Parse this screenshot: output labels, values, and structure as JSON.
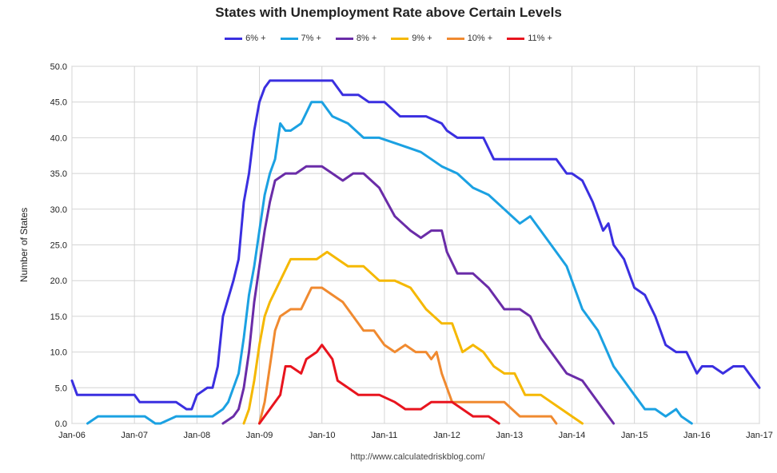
{
  "chart_data": {
    "type": "line",
    "title": "States with Unemployment Rate above Certain Levels",
    "ylabel": "Number of States",
    "xlabel": "",
    "source": "http://www.calculatedriskblog.com/",
    "ylim": [
      0,
      50
    ],
    "xlim": [
      "2006-01",
      "2017-01"
    ],
    "grid": true,
    "legend_position": "top",
    "y_ticks": [
      "0.0",
      "5.0",
      "10.0",
      "15.0",
      "20.0",
      "25.0",
      "30.0",
      "35.0",
      "40.0",
      "45.0",
      "50.0"
    ],
    "x_ticks": [
      "Jan-06",
      "Jan-07",
      "Jan-08",
      "Jan-09",
      "Jan-10",
      "Jan-11",
      "Jan-12",
      "Jan-13",
      "Jan-14",
      "Jan-15",
      "Jan-16",
      "Jan-17"
    ],
    "series": [
      {
        "name": "6% +",
        "color": "#3a2fe0",
        "x": [
          "2006-01",
          "2006-02",
          "2006-03",
          "2006-06",
          "2006-09",
          "2007-01",
          "2007-02",
          "2007-04",
          "2007-07",
          "2007-09",
          "2007-11",
          "2007-12",
          "2008-01",
          "2008-03",
          "2008-04",
          "2008-05",
          "2008-06",
          "2008-08",
          "2008-09",
          "2008-10",
          "2008-11",
          "2008-12",
          "2009-01",
          "2009-02",
          "2009-03",
          "2009-04",
          "2009-05",
          "2009-06",
          "2009-07",
          "2009-09",
          "2009-12",
          "2010-03",
          "2010-05",
          "2010-08",
          "2010-10",
          "2010-11",
          "2011-01",
          "2011-04",
          "2011-06",
          "2011-09",
          "2011-12",
          "2012-01",
          "2012-03",
          "2012-06",
          "2012-08",
          "2012-10",
          "2012-12",
          "2013-03",
          "2013-06",
          "2013-10",
          "2013-12",
          "2014-01",
          "2014-03",
          "2014-05",
          "2014-07",
          "2014-08",
          "2014-09",
          "2014-11",
          "2015-01",
          "2015-03",
          "2015-05",
          "2015-07",
          "2015-09",
          "2015-11",
          "2016-01",
          "2016-02",
          "2016-04",
          "2016-06",
          "2016-08",
          "2016-10",
          "2016-12",
          "2017-01"
        ],
        "values": [
          6,
          4,
          4,
          4,
          4,
          4,
          3,
          3,
          3,
          3,
          2,
          2,
          4,
          5,
          5,
          8,
          15,
          20,
          23,
          31,
          35,
          41,
          45,
          47,
          48,
          48,
          48,
          48,
          48,
          48,
          48,
          48,
          46,
          46,
          45,
          45,
          45,
          43,
          43,
          43,
          42,
          41,
          40,
          40,
          40,
          37,
          37,
          37,
          37,
          37,
          35,
          35,
          34,
          31,
          27,
          28,
          25,
          23,
          19,
          18,
          15,
          11,
          10,
          10,
          7,
          8,
          8,
          7,
          8,
          8,
          6,
          5
        ]
      },
      {
        "name": "7% +",
        "color": "#1ba1e2",
        "x": [
          "2006-04",
          "2006-06",
          "2006-09",
          "2007-01",
          "2007-03",
          "2007-05",
          "2007-06",
          "2007-09",
          "2008-01",
          "2008-04",
          "2008-06",
          "2008-07",
          "2008-09",
          "2008-10",
          "2008-11",
          "2008-12",
          "2009-01",
          "2009-02",
          "2009-03",
          "2009-04",
          "2009-05",
          "2009-06",
          "2009-07",
          "2009-09",
          "2009-11",
          "2010-01",
          "2010-03",
          "2010-06",
          "2010-09",
          "2010-12",
          "2011-04",
          "2011-08",
          "2011-12",
          "2012-03",
          "2012-06",
          "2012-09",
          "2012-12",
          "2013-03",
          "2013-05",
          "2013-07",
          "2013-10",
          "2013-12",
          "2014-03",
          "2014-06",
          "2014-09",
          "2014-11",
          "2015-01",
          "2015-03",
          "2015-05",
          "2015-07",
          "2015-09",
          "2015-10",
          "2015-12"
        ],
        "values": [
          0,
          1,
          1,
          1,
          1,
          0,
          0,
          1,
          1,
          1,
          2,
          3,
          7,
          12,
          18,
          22,
          27,
          32,
          35,
          37,
          42,
          41,
          41,
          42,
          45,
          45,
          43,
          42,
          40,
          40,
          39,
          38,
          36,
          35,
          33,
          32,
          30,
          28,
          29,
          27,
          24,
          22,
          16,
          13,
          8,
          6,
          4,
          2,
          2,
          1,
          2,
          1,
          0
        ]
      },
      {
        "name": "8% +",
        "color": "#6a2ca8",
        "x": [
          "2008-06",
          "2008-08",
          "2008-09",
          "2008-10",
          "2008-11",
          "2008-12",
          "2009-01",
          "2009-02",
          "2009-03",
          "2009-04",
          "2009-06",
          "2009-08",
          "2009-10",
          "2010-01",
          "2010-03",
          "2010-05",
          "2010-07",
          "2010-09",
          "2010-12",
          "2011-03",
          "2011-06",
          "2011-08",
          "2011-10",
          "2011-12",
          "2012-01",
          "2012-03",
          "2012-06",
          "2012-09",
          "2012-12",
          "2013-03",
          "2013-05",
          "2013-07",
          "2013-10",
          "2013-12",
          "2014-03",
          "2014-05",
          "2014-07",
          "2014-09"
        ],
        "values": [
          0,
          1,
          2,
          5,
          10,
          17,
          22,
          27,
          31,
          34,
          35,
          35,
          36,
          36,
          35,
          34,
          35,
          35,
          33,
          29,
          27,
          26,
          27,
          27,
          24,
          21,
          21,
          19,
          16,
          16,
          15,
          12,
          9,
          7,
          6,
          4,
          2,
          0
        ]
      },
      {
        "name": "9% +",
        "color": "#f5b800",
        "x": [
          "2008-10",
          "2008-11",
          "2008-12",
          "2009-01",
          "2009-02",
          "2009-03",
          "2009-05",
          "2009-07",
          "2009-10",
          "2009-12",
          "2010-02",
          "2010-04",
          "2010-06",
          "2010-09",
          "2010-12",
          "2011-03",
          "2011-06",
          "2011-09",
          "2011-12",
          "2012-02",
          "2012-04",
          "2012-06",
          "2012-08",
          "2012-10",
          "2012-12",
          "2013-02",
          "2013-04",
          "2013-07",
          "2013-09",
          "2013-11",
          "2014-01",
          "2014-03"
        ],
        "values": [
          0,
          2,
          6,
          11,
          15,
          17,
          20,
          23,
          23,
          23,
          24,
          23,
          22,
          22,
          20,
          20,
          19,
          16,
          14,
          14,
          10,
          11,
          10,
          8,
          7,
          7,
          4,
          4,
          3,
          2,
          1,
          0
        ]
      },
      {
        "name": "10% +",
        "color": "#f08a30",
        "x": [
          "2009-01",
          "2009-02",
          "2009-03",
          "2009-04",
          "2009-05",
          "2009-07",
          "2009-09",
          "2009-11",
          "2010-01",
          "2010-03",
          "2010-05",
          "2010-07",
          "2010-09",
          "2010-11",
          "2011-01",
          "2011-03",
          "2011-05",
          "2011-07",
          "2011-09",
          "2011-10",
          "2011-11",
          "2011-12",
          "2012-02",
          "2012-04",
          "2012-06",
          "2012-09",
          "2012-12",
          "2013-03",
          "2013-06",
          "2013-09",
          "2013-10"
        ],
        "values": [
          0,
          3,
          8,
          13,
          15,
          16,
          16,
          19,
          19,
          18,
          17,
          15,
          13,
          13,
          11,
          10,
          11,
          10,
          10,
          9,
          10,
          7,
          3,
          3,
          3,
          3,
          3,
          1,
          1,
          1,
          0
        ]
      },
      {
        "name": "11% +",
        "color": "#e8141e",
        "x": [
          "2009-01",
          "2009-03",
          "2009-05",
          "2009-06",
          "2009-07",
          "2009-09",
          "2009-10",
          "2009-12",
          "2010-01",
          "2010-03",
          "2010-04",
          "2010-06",
          "2010-08",
          "2010-10",
          "2010-12",
          "2011-03",
          "2011-05",
          "2011-08",
          "2011-10",
          "2012-02",
          "2012-04",
          "2012-06",
          "2012-09",
          "2012-11"
        ],
        "values": [
          0,
          2,
          4,
          8,
          8,
          7,
          9,
          10,
          11,
          9,
          6,
          5,
          4,
          4,
          4,
          3,
          2,
          2,
          3,
          3,
          2,
          1,
          1,
          0
        ]
      }
    ]
  }
}
